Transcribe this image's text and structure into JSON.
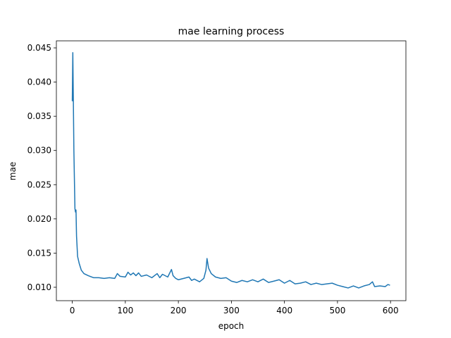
{
  "chart_data": {
    "type": "line",
    "title": "mae learning process",
    "x_label": "epoch",
    "y_label": "mae",
    "color": "#1f77b4",
    "x": [
      0,
      1,
      2,
      3,
      5,
      6,
      7,
      8,
      10,
      13,
      17,
      22,
      30,
      40,
      50,
      60,
      70,
      80,
      85,
      90,
      100,
      105,
      110,
      115,
      120,
      125,
      130,
      140,
      150,
      160,
      165,
      170,
      180,
      187,
      190,
      195,
      200,
      210,
      220,
      225,
      230,
      240,
      248,
      252,
      254,
      257,
      262,
      270,
      280,
      290,
      300,
      310,
      320,
      330,
      340,
      350,
      360,
      370,
      380,
      390,
      400,
      410,
      420,
      430,
      440,
      450,
      460,
      470,
      480,
      490,
      500,
      510,
      520,
      530,
      540,
      550,
      560,
      566,
      570,
      580,
      590,
      595,
      599
    ],
    "values": [
      0.0372,
      0.0443,
      0.0375,
      0.03,
      0.0215,
      0.021,
      0.0213,
      0.0175,
      0.0145,
      0.0135,
      0.0125,
      0.012,
      0.0117,
      0.0114,
      0.0114,
      0.0113,
      0.0114,
      0.0113,
      0.012,
      0.0116,
      0.0115,
      0.0122,
      0.0118,
      0.0121,
      0.0117,
      0.0121,
      0.0116,
      0.0118,
      0.0114,
      0.012,
      0.0114,
      0.0119,
      0.0115,
      0.0126,
      0.0117,
      0.0113,
      0.0111,
      0.0113,
      0.0115,
      0.011,
      0.0112,
      0.0108,
      0.0113,
      0.0125,
      0.0142,
      0.0128,
      0.012,
      0.0115,
      0.0113,
      0.0114,
      0.0109,
      0.0107,
      0.011,
      0.0108,
      0.0111,
      0.0108,
      0.0112,
      0.0107,
      0.0109,
      0.0111,
      0.0106,
      0.011,
      0.0105,
      0.0106,
      0.0108,
      0.0104,
      0.0106,
      0.0104,
      0.0105,
      0.0106,
      0.0103,
      0.0101,
      0.0099,
      0.0102,
      0.0099,
      0.0102,
      0.0104,
      0.0108,
      0.0101,
      0.0102,
      0.0101,
      0.0104,
      0.0103
    ],
    "xlim": [
      -30,
      629
    ],
    "xticks": [
      0,
      100,
      200,
      300,
      400,
      500,
      600
    ],
    "ylim": [
      0.00804,
      0.04603
    ],
    "yticks": [
      {
        "value": 0.01,
        "label": "0.010"
      },
      0.015,
      {
        "value": 0.02,
        "label": "0.020"
      },
      0.025,
      {
        "value": 0.03,
        "label": "0.030"
      },
      0.035,
      {
        "value": 0.04,
        "label": "0.040"
      },
      0.045
    ]
  }
}
